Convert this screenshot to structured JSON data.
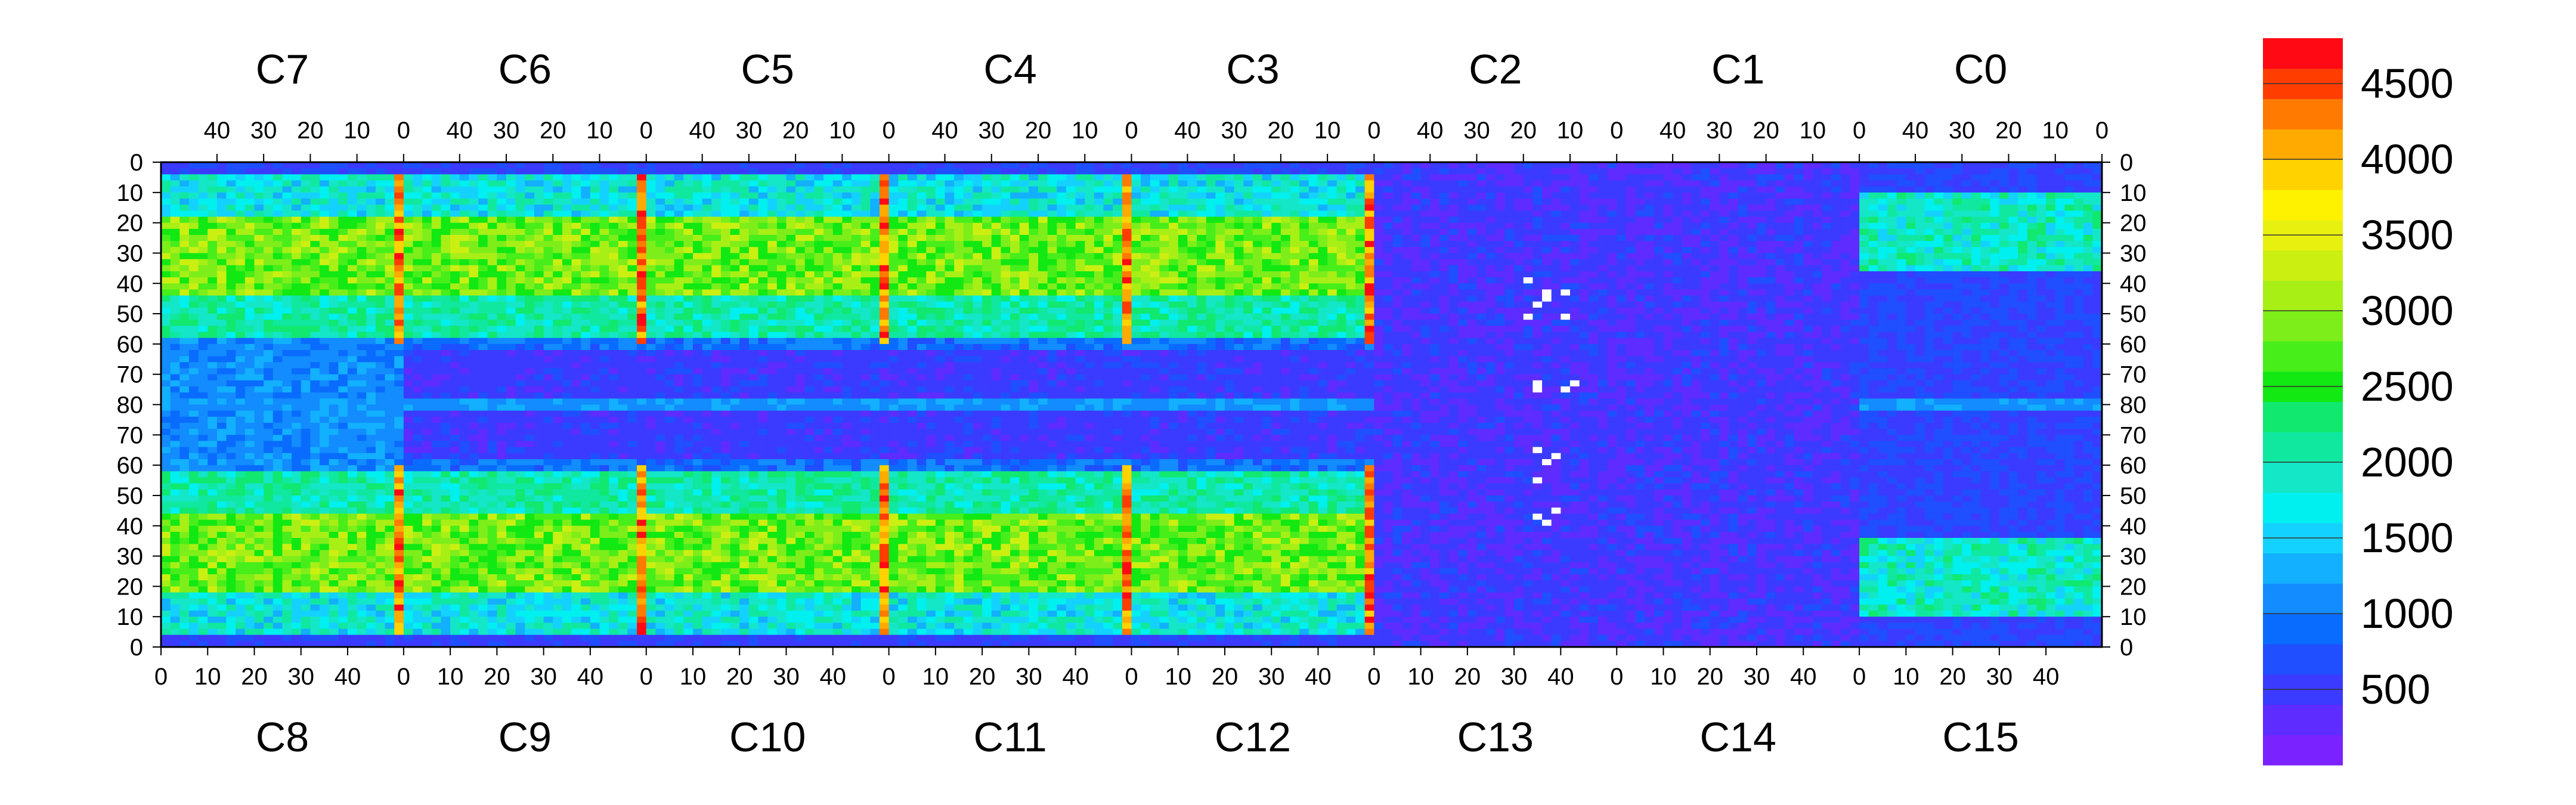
{
  "chart_data": {
    "type": "heatmap",
    "title": "",
    "top_chip_labels": [
      "C7",
      "C6",
      "C5",
      "C4",
      "C3",
      "C2",
      "C1",
      "C0"
    ],
    "bottom_chip_labels": [
      "C8",
      "C9",
      "C10",
      "C11",
      "C12",
      "C13",
      "C14",
      "C15"
    ],
    "top_x_ticks": [
      "40",
      "30",
      "20",
      "10",
      "0"
    ],
    "top_x_tick_values": [
      40,
      30,
      20,
      10,
      0
    ],
    "bottom_x_ticks": [
      "0",
      "10",
      "20",
      "30",
      "40"
    ],
    "bottom_x_tick_values": [
      0,
      10,
      20,
      30,
      40
    ],
    "y_ticks": [
      "0",
      "10",
      "20",
      "30",
      "40",
      "50",
      "60",
      "70",
      "80",
      "70",
      "60",
      "50",
      "40",
      "30",
      "20",
      "10",
      "0"
    ],
    "columns_per_chip": 52,
    "rows_per_half": 80,
    "colorbar": {
      "ticks": [
        "500",
        "1000",
        "1500",
        "2000",
        "2500",
        "3000",
        "3500",
        "4000",
        "4500"
      ],
      "tick_values": [
        500,
        1000,
        1500,
        2000,
        2500,
        3000,
        3500,
        4000,
        4500
      ],
      "range": [
        0,
        4800
      ],
      "colors": [
        "#7a22ff",
        "#5e2cff",
        "#3b3bff",
        "#1f4fff",
        "#0a6cff",
        "#128cff",
        "#12b0ff",
        "#14d2ff",
        "#00f0f0",
        "#14e6c8",
        "#10e8a0",
        "#10e870",
        "#12e812",
        "#47ee1a",
        "#7dee1a",
        "#a8ef16",
        "#ccef12",
        "#e8f00f",
        "#fff200",
        "#ffd200",
        "#ffaa00",
        "#ff7a00",
        "#ff3d00",
        "#ff0a14"
      ]
    },
    "notes_regions": {
      "chip_gaps_high": "vertical columns between chips reach ~4500",
      "center_row_low": "row 80 band around ~1000",
      "C1_C2_C13_C14_low": "mostly below ~700 with white dead pixels"
    }
  }
}
